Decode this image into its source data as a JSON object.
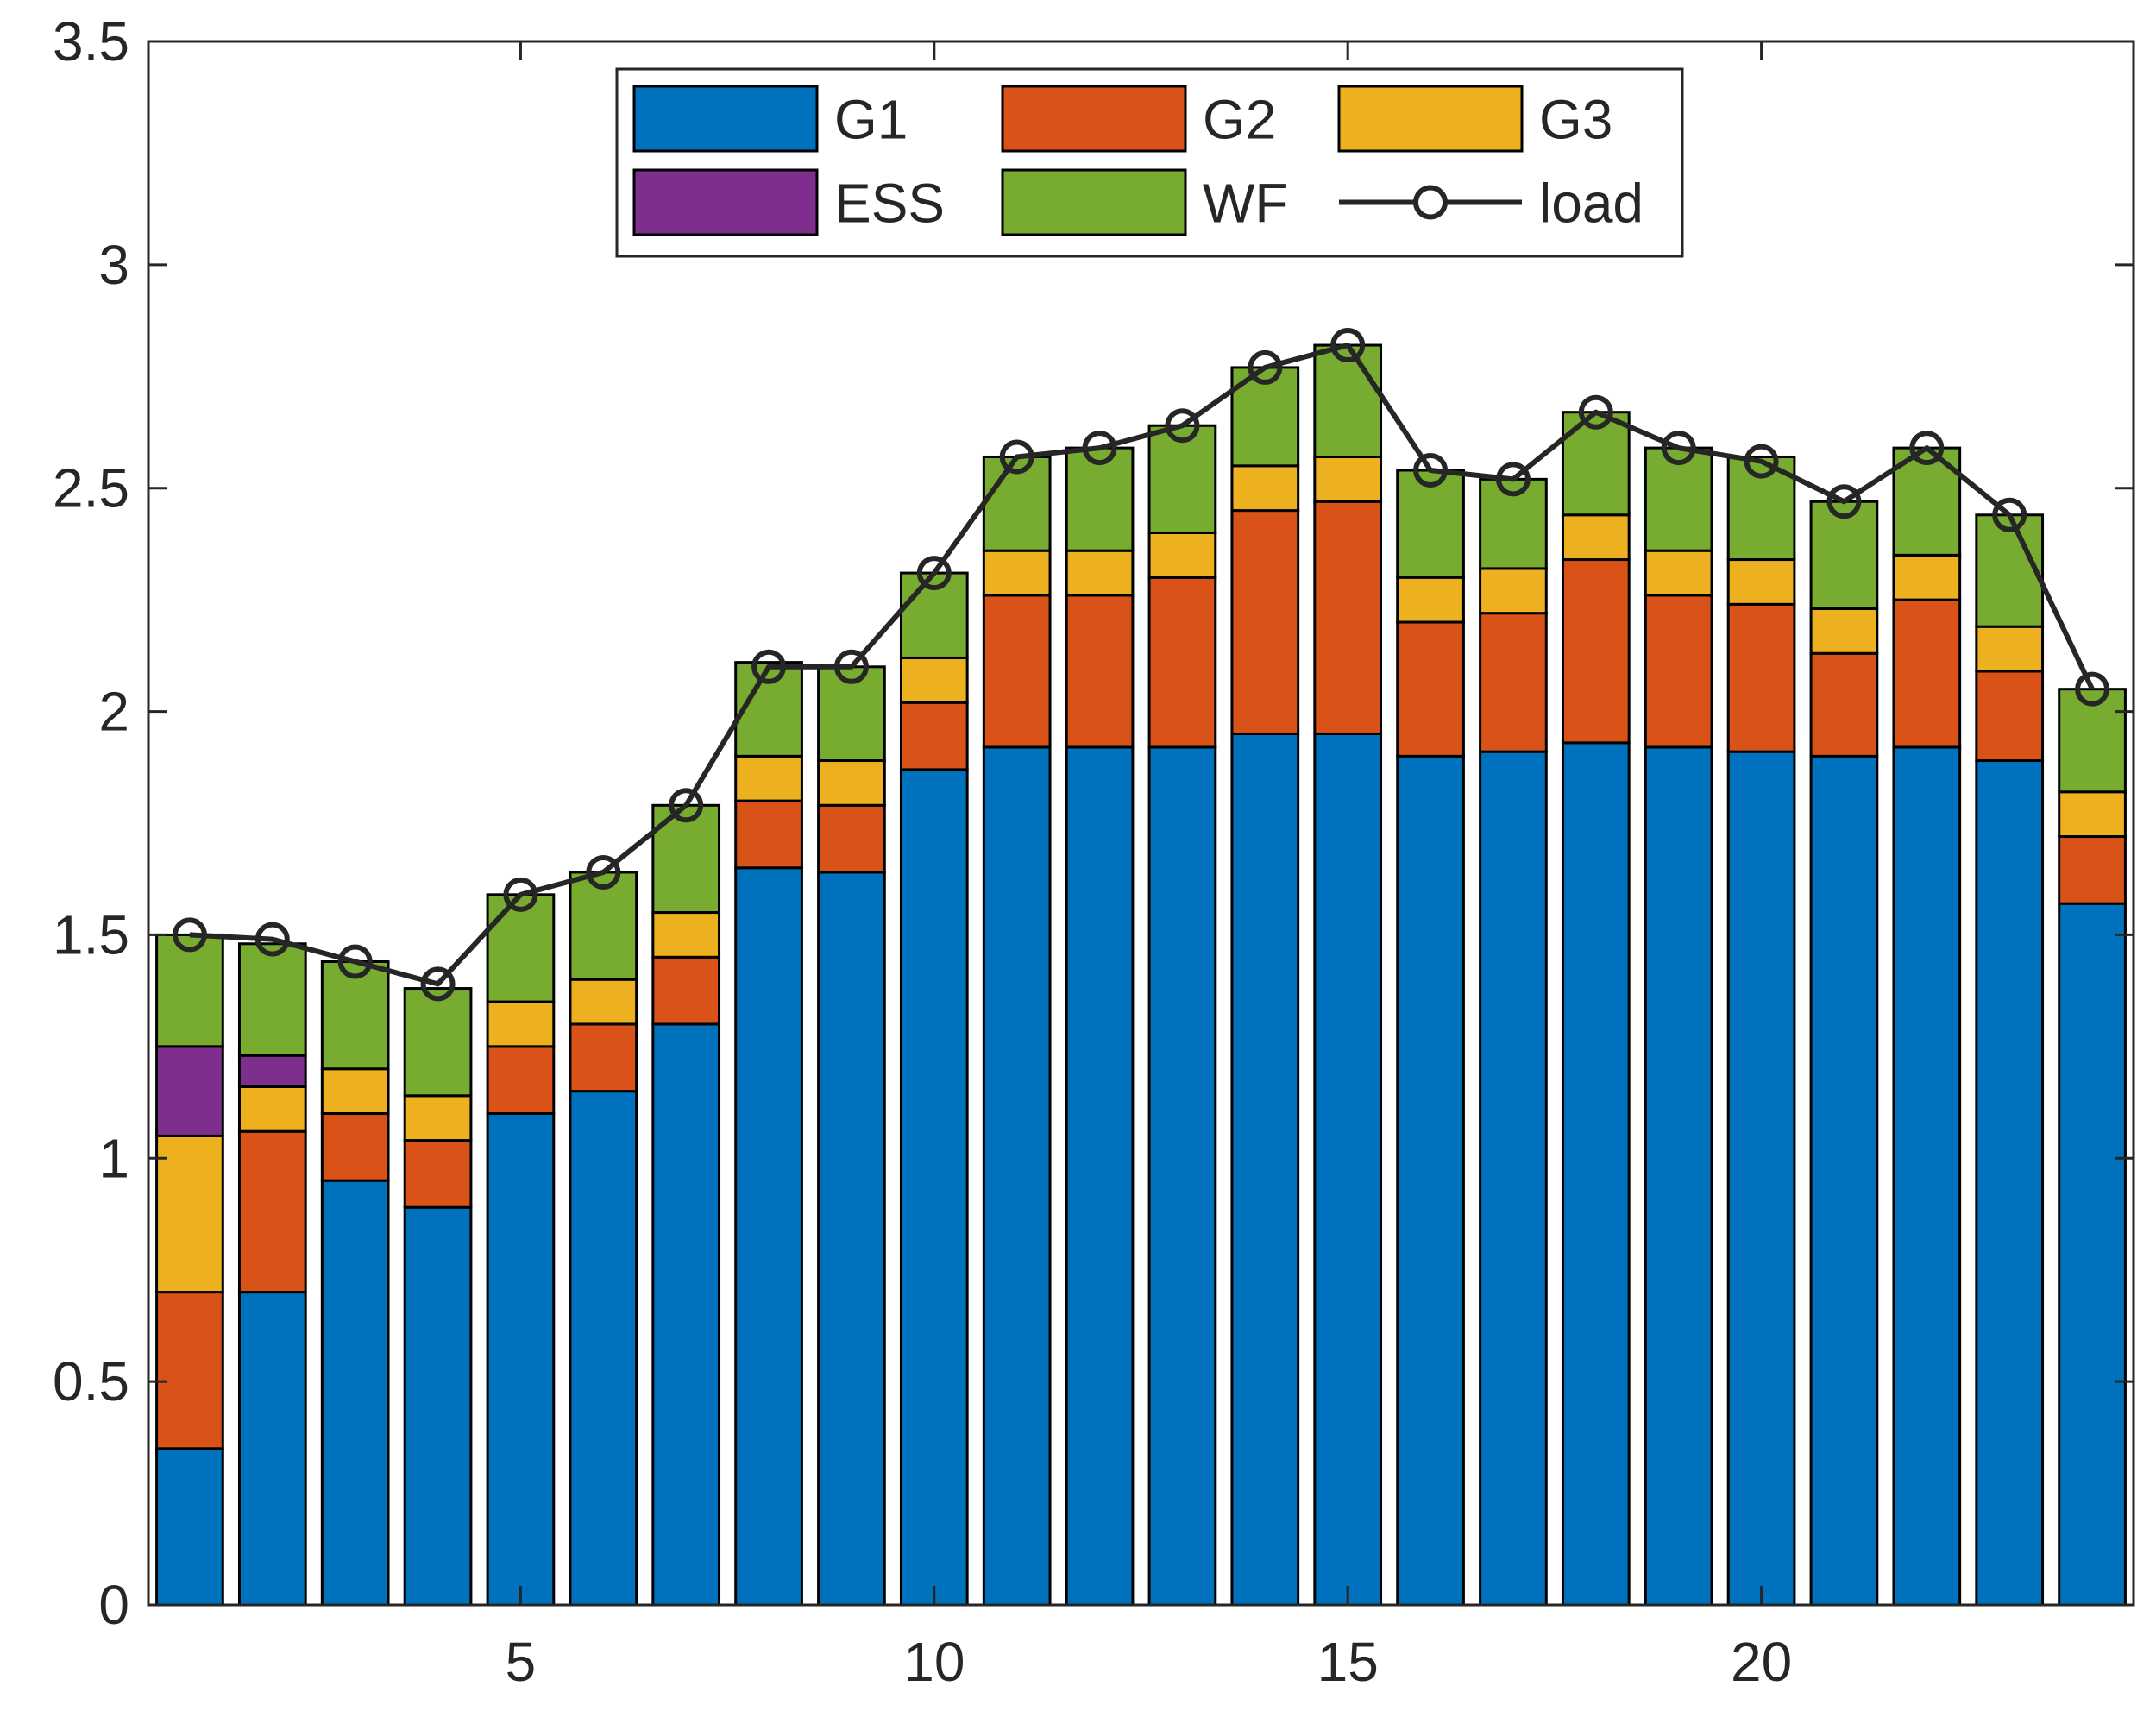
{
  "chart_data": {
    "type": "bar",
    "stacked": true,
    "title": "",
    "xlabel": "",
    "ylabel": "",
    "categories": [
      1,
      2,
      3,
      4,
      5,
      6,
      7,
      8,
      9,
      10,
      11,
      12,
      13,
      14,
      15,
      16,
      17,
      18,
      19,
      20,
      21,
      22,
      23,
      24
    ],
    "xlim": [
      0.5,
      24.5
    ],
    "ylim": [
      0,
      3.5
    ],
    "xticks": [
      5,
      10,
      15,
      20
    ],
    "xtick_labels": [
      "5",
      "10",
      "15",
      "20"
    ],
    "yticks": [
      0,
      0.5,
      1,
      1.5,
      2,
      2.5,
      3,
      3.5
    ],
    "ytick_labels": [
      "0",
      "0.5",
      "1",
      "1.5",
      "2",
      "2.5",
      "3",
      "3.5"
    ],
    "grid": false,
    "legend_position": "top-center",
    "series": [
      {
        "name": "G1",
        "color": "#0072BD",
        "values": [
          0.35,
          0.7,
          0.95,
          0.89,
          1.1,
          1.15,
          1.3,
          1.65,
          1.64,
          1.87,
          1.92,
          1.92,
          1.92,
          1.95,
          1.95,
          1.9,
          1.91,
          1.93,
          1.92,
          1.91,
          1.9,
          1.92,
          1.89,
          1.57
        ]
      },
      {
        "name": "G2",
        "color": "#D95319",
        "values": [
          0.35,
          0.36,
          0.15,
          0.15,
          0.15,
          0.15,
          0.15,
          0.15,
          0.15,
          0.15,
          0.34,
          0.34,
          0.38,
          0.5,
          0.52,
          0.3,
          0.31,
          0.41,
          0.34,
          0.33,
          0.23,
          0.33,
          0.2,
          0.15
        ]
      },
      {
        "name": "G3",
        "color": "#EDB120",
        "values": [
          0.35,
          0.1,
          0.1,
          0.1,
          0.1,
          0.1,
          0.1,
          0.1,
          0.1,
          0.1,
          0.1,
          0.1,
          0.1,
          0.1,
          0.1,
          0.1,
          0.1,
          0.1,
          0.1,
          0.1,
          0.1,
          0.1,
          0.1,
          0.1
        ]
      },
      {
        "name": "ESS",
        "color": "#7E2F8E",
        "values": [
          0.2,
          0.07,
          0,
          0,
          0,
          0,
          0,
          0,
          0,
          0,
          0,
          0,
          0,
          0,
          0,
          0,
          0,
          0,
          0,
          0,
          0,
          0,
          0,
          0
        ]
      },
      {
        "name": "WF",
        "color": "#77AC30",
        "values": [
          0.25,
          0.25,
          0.24,
          0.24,
          0.24,
          0.24,
          0.24,
          0.21,
          0.21,
          0.19,
          0.21,
          0.23,
          0.24,
          0.22,
          0.25,
          0.24,
          0.2,
          0.23,
          0.23,
          0.23,
          0.24,
          0.24,
          0.25,
          0.23
        ]
      }
    ],
    "line": {
      "name": "load",
      "color": "#262626",
      "marker": "o",
      "values": [
        1.5,
        1.49,
        1.44,
        1.39,
        1.59,
        1.64,
        1.79,
        2.1,
        2.1,
        2.31,
        2.57,
        2.59,
        2.64,
        2.77,
        2.82,
        2.54,
        2.52,
        2.67,
        2.59,
        2.56,
        2.47,
        2.59,
        2.44,
        2.05
      ]
    },
    "legend": [
      {
        "label": "G1",
        "kind": "patch",
        "color": "#0072BD"
      },
      {
        "label": "G2",
        "kind": "patch",
        "color": "#D95319"
      },
      {
        "label": "G3",
        "kind": "patch",
        "color": "#EDB120"
      },
      {
        "label": "ESS",
        "kind": "patch",
        "color": "#7E2F8E"
      },
      {
        "label": "WF",
        "kind": "patch",
        "color": "#77AC30"
      },
      {
        "label": "load",
        "kind": "line",
        "color": "#262626"
      }
    ]
  }
}
